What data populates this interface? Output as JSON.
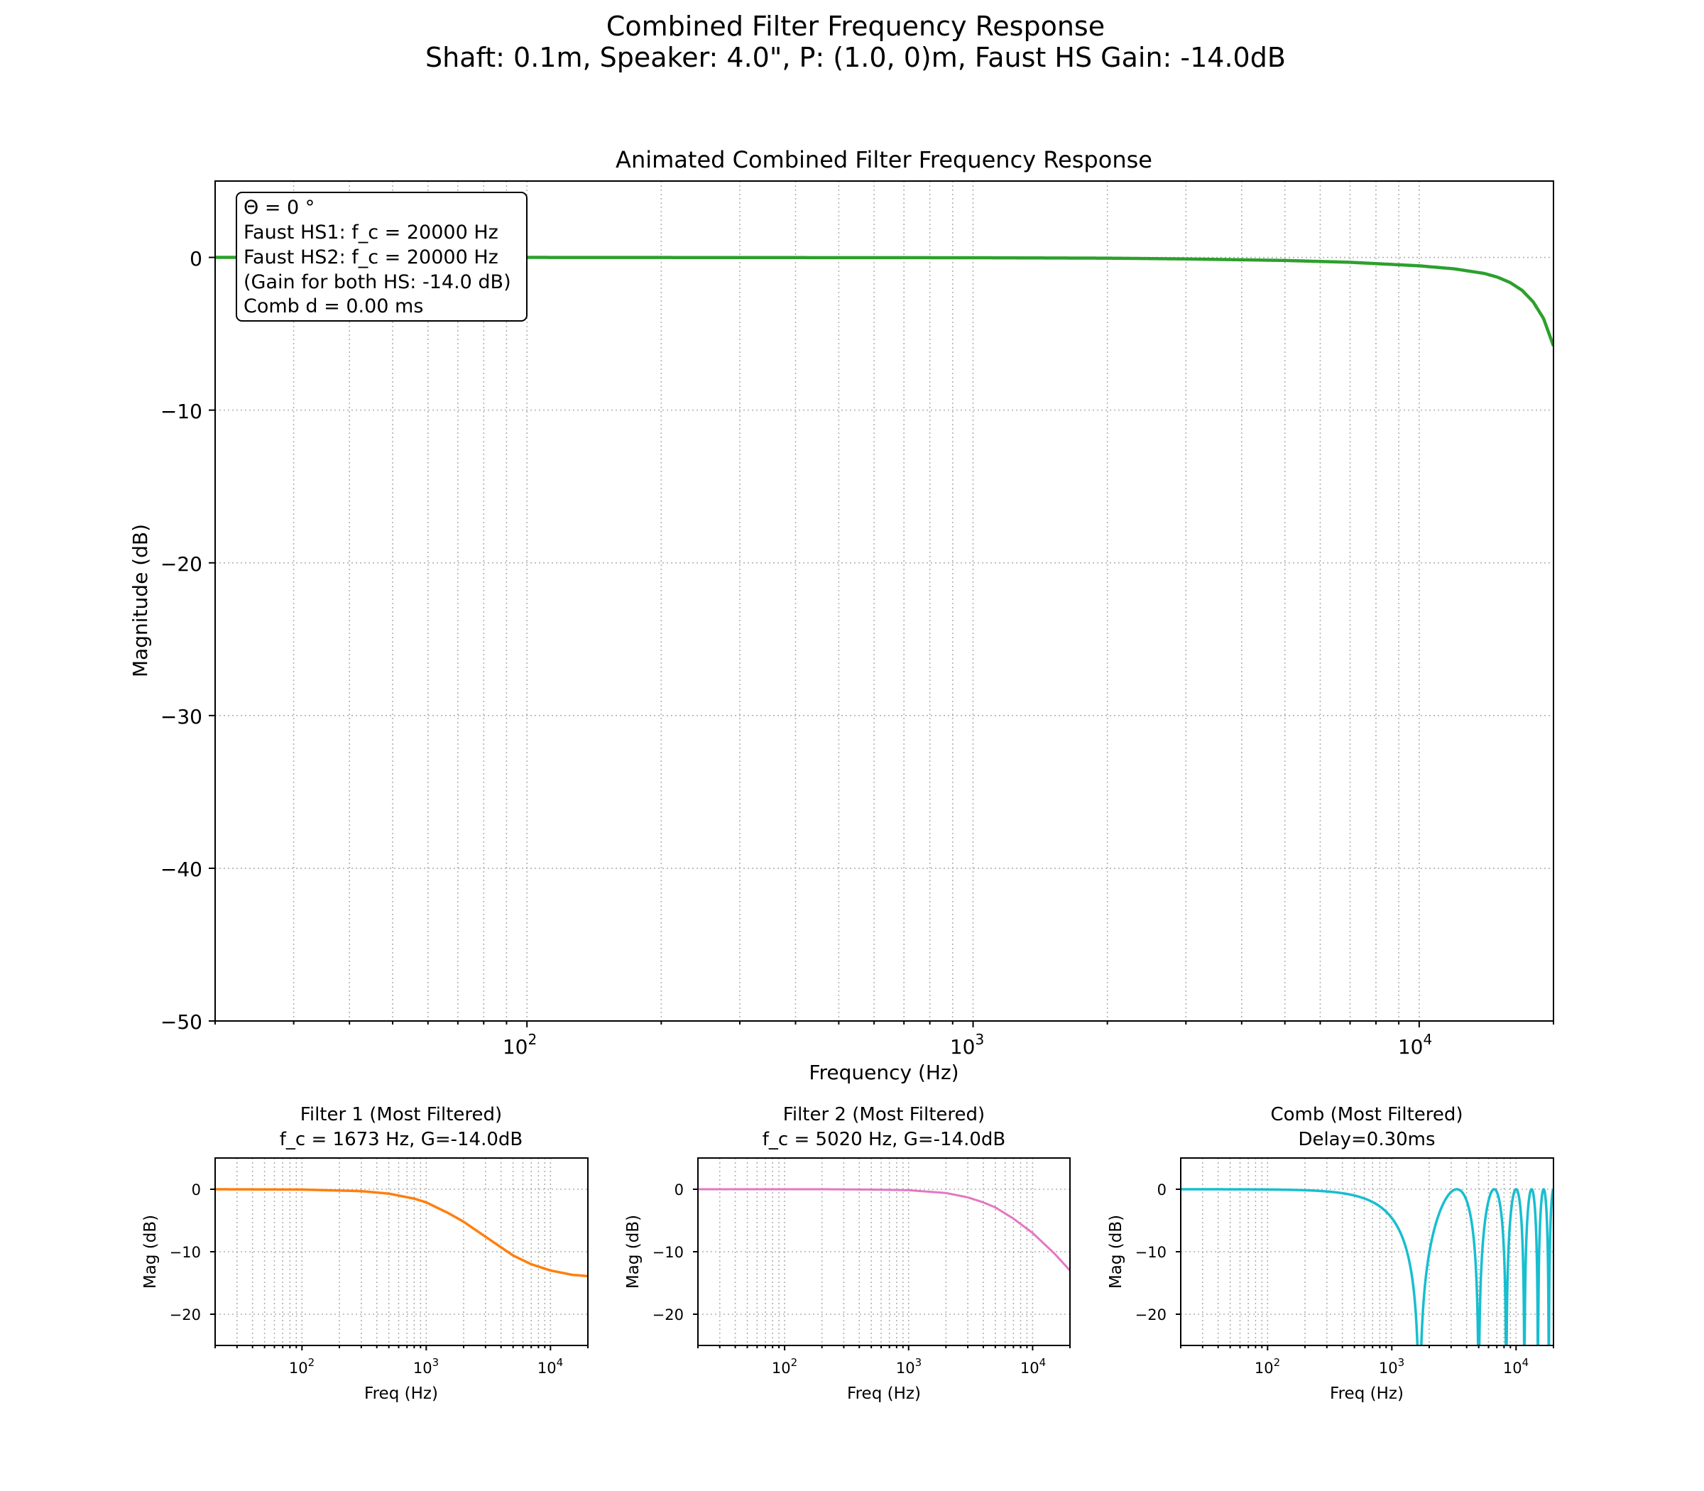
{
  "figure": {
    "suptitle_line1": "Combined Filter Frequency Response",
    "suptitle_line2": "Shaft: 0.1m, Speaker: 4.0\", P: (1.0, 0)m, Faust HS Gain: -14.0dB"
  },
  "main": {
    "title": "Animated Combined Filter Frequency Response",
    "xlabel": "Frequency (Hz)",
    "ylabel": "Magnitude (dB)",
    "annotation": {
      "line1": "Θ = 0 °",
      "line2": "Faust HS1: f_c = 20000 Hz",
      "line3": "Faust HS2: f_c = 20000 Hz",
      "line4": "(Gain for both HS: -14.0 dB)",
      "line5": "Comb d = 0.00 ms"
    },
    "ytick_labels": [
      "0",
      "−10",
      "−20",
      "−30",
      "−40",
      "−50"
    ],
    "xtick_labels": [
      "10",
      "10",
      "10"
    ],
    "xtick_exponents": [
      "2",
      "3",
      "4"
    ]
  },
  "sub1": {
    "title_line1": "Filter 1 (Most Filtered)",
    "title_line2": "f_c = 1673 Hz, G=-14.0dB",
    "xlabel": "Freq (Hz)",
    "ylabel": "Mag (dB)",
    "ytick_labels": [
      "0",
      "−10",
      "−20"
    ]
  },
  "sub2": {
    "title_line1": "Filter 2 (Most Filtered)",
    "title_line2": "f_c = 5020 Hz, G=-14.0dB",
    "xlabel": "Freq (Hz)",
    "ylabel": "Mag (dB)",
    "ytick_labels": [
      "0",
      "−10",
      "−20"
    ]
  },
  "sub3": {
    "title_line1": "Comb (Most Filtered)",
    "title_line2": "Delay=0.30ms",
    "xlabel": "Freq (Hz)",
    "ylabel": "Mag (dB)",
    "ytick_labels": [
      "0",
      "−10",
      "−20"
    ]
  },
  "chart_data": [
    {
      "type": "line",
      "title": "Animated Combined Filter Frequency Response",
      "xlabel": "Frequency (Hz)",
      "ylabel": "Magnitude (dB)",
      "xscale": "log",
      "xlim": [
        20,
        20000
      ],
      "ylim": [
        -50,
        5
      ],
      "grid": true,
      "color": "#2ca02c",
      "series": [
        {
          "x": [
            20,
            100,
            1000,
            2000,
            3000,
            5000,
            7000,
            10000,
            12000,
            14000,
            15000,
            16000,
            17000,
            18000,
            19000,
            20000
          ],
          "values": [
            0,
            0,
            -0.02,
            -0.05,
            -0.1,
            -0.2,
            -0.32,
            -0.55,
            -0.75,
            -1.05,
            -1.3,
            -1.65,
            -2.15,
            -2.9,
            -4.0,
            -5.8
          ]
        }
      ]
    },
    {
      "type": "line",
      "title": "Filter 1 (Most Filtered)",
      "xlabel": "Freq (Hz)",
      "ylabel": "Mag (dB)",
      "xscale": "log",
      "xlim": [
        20,
        20000
      ],
      "ylim": [
        -25,
        5
      ],
      "grid": true,
      "color": "#ff7f0e",
      "series": [
        {
          "x": [
            20,
            100,
            300,
            500,
            800,
            1000,
            1500,
            2000,
            3000,
            5000,
            7000,
            10000,
            15000,
            20000
          ],
          "values": [
            0,
            -0.05,
            -0.3,
            -0.7,
            -1.5,
            -2.1,
            -3.8,
            -5.2,
            -7.6,
            -10.6,
            -12.0,
            -13.0,
            -13.7,
            -13.9
          ]
        }
      ]
    },
    {
      "type": "line",
      "title": "Filter 2 (Most Filtered)",
      "xlabel": "Freq (Hz)",
      "ylabel": "Mag (dB)",
      "xscale": "log",
      "xlim": [
        20,
        20000
      ],
      "ylim": [
        -25,
        5
      ],
      "grid": true,
      "color": "#e377c2",
      "series": [
        {
          "x": [
            20,
            200,
            500,
            1000,
            2000,
            3000,
            4000,
            5000,
            7000,
            10000,
            15000,
            20000
          ],
          "values": [
            0,
            0,
            -0.05,
            -0.15,
            -0.6,
            -1.3,
            -2.1,
            -2.9,
            -4.7,
            -7.0,
            -10.3,
            -13.0
          ]
        }
      ]
    },
    {
      "type": "line",
      "title": "Comb (Most Filtered)",
      "xlabel": "Freq (Hz)",
      "ylabel": "Mag (dB)",
      "xscale": "log",
      "xlim": [
        20,
        20000
      ],
      "ylim": [
        -25,
        5
      ],
      "grid": true,
      "color": "#17becf",
      "delay_ms": 0.3,
      "notch_frequencies_hz": [
        1667,
        5000,
        8333,
        11667,
        15000,
        18333
      ],
      "peak_frequencies_hz": [
        3333,
        6667,
        10000,
        13333,
        16667
      ],
      "peak_value_db": 0
    }
  ]
}
